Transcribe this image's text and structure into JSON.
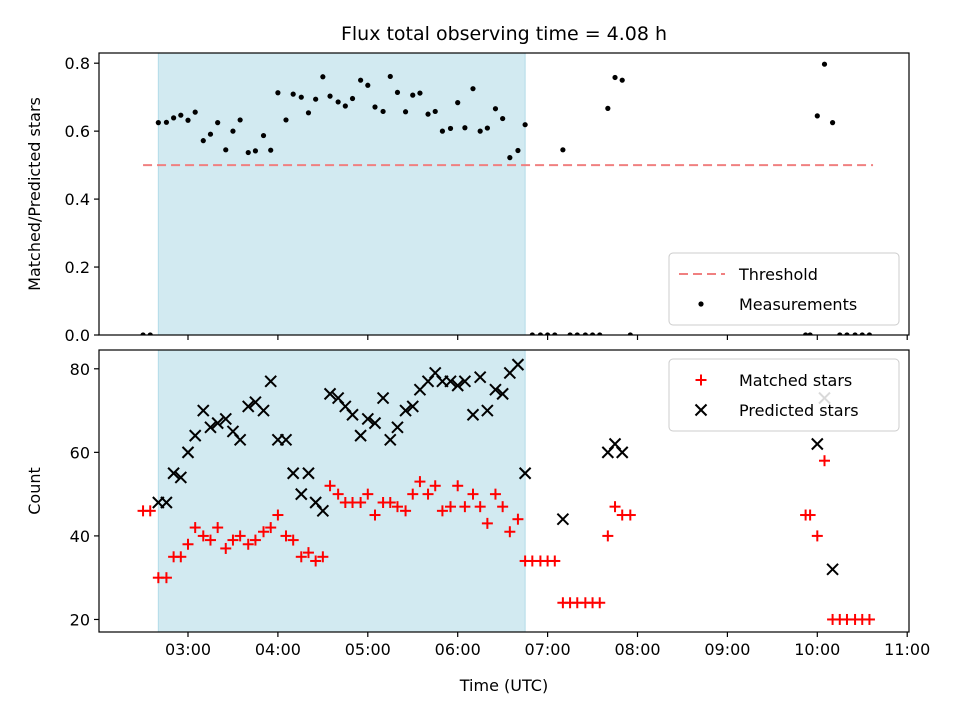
{
  "chart_data": {
    "title": "Flux total observing time = 4.08 h",
    "xlabel": "Time (UTC)",
    "x_unit": "hours UTC",
    "xlim": [
      2.01,
      11.02
    ],
    "xticks": [
      {
        "value": 3,
        "label": "03:00"
      },
      {
        "value": 4,
        "label": "04:00"
      },
      {
        "value": 5,
        "label": "05:00"
      },
      {
        "value": 6,
        "label": "06:00"
      },
      {
        "value": 7,
        "label": "07:00"
      },
      {
        "value": 8,
        "label": "08:00"
      },
      {
        "value": 9,
        "label": "09:00"
      },
      {
        "value": 10,
        "label": "10:00"
      },
      {
        "value": 11,
        "label": "11:00"
      }
    ],
    "shaded_span": {
      "x_start": 2.67,
      "x_end": 6.75,
      "color": "#add8e6"
    },
    "panels": [
      {
        "type": "scatter",
        "ylabel": "Matched/Predicted stars",
        "ylim": [
          0,
          0.83
        ],
        "yticks": [
          {
            "value": 0.0,
            "label": "0.0"
          },
          {
            "value": 0.2,
            "label": "0.2"
          },
          {
            "value": 0.4,
            "label": "0.4"
          },
          {
            "value": 0.6,
            "label": "0.6"
          },
          {
            "value": 0.8,
            "label": "0.8"
          }
        ],
        "threshold": {
          "name": "Threshold",
          "value": 0.5,
          "x_start": 2.5,
          "x_end": 10.62,
          "color": "#f08080"
        },
        "legend_position": "lower-right",
        "series": [
          {
            "name": "Measurements",
            "marker": "dot",
            "color": "#000000",
            "points": [
              [
                2.5,
                0
              ],
              [
                2.58,
                0
              ],
              [
                2.67,
                0.625
              ],
              [
                2.76,
                0.626
              ],
              [
                2.84,
                0.639
              ],
              [
                2.92,
                0.647
              ],
              [
                3.0,
                0.632
              ],
              [
                3.08,
                0.656
              ],
              [
                3.17,
                0.572
              ],
              [
                3.25,
                0.591
              ],
              [
                3.33,
                0.625
              ],
              [
                3.42,
                0.545
              ],
              [
                3.5,
                0.6
              ],
              [
                3.58,
                0.633
              ],
              [
                3.67,
                0.537
              ],
              [
                3.75,
                0.542
              ],
              [
                3.84,
                0.587
              ],
              [
                3.92,
                0.544
              ],
              [
                4.0,
                0.713
              ],
              [
                4.09,
                0.633
              ],
              [
                4.17,
                0.709
              ],
              [
                4.26,
                0.7
              ],
              [
                4.34,
                0.654
              ],
              [
                4.42,
                0.694
              ],
              [
                4.5,
                0.76
              ],
              [
                4.58,
                0.703
              ],
              [
                4.67,
                0.686
              ],
              [
                4.75,
                0.674
              ],
              [
                4.83,
                0.696
              ],
              [
                4.92,
                0.75
              ],
              [
                5.0,
                0.735
              ],
              [
                5.08,
                0.671
              ],
              [
                5.17,
                0.658
              ],
              [
                5.25,
                0.761
              ],
              [
                5.33,
                0.714
              ],
              [
                5.42,
                0.657
              ],
              [
                5.5,
                0.706
              ],
              [
                5.58,
                0.712
              ],
              [
                5.67,
                0.65
              ],
              [
                5.75,
                0.658
              ],
              [
                5.83,
                0.6
              ],
              [
                5.92,
                0.608
              ],
              [
                6.0,
                0.684
              ],
              [
                6.08,
                0.61
              ],
              [
                6.17,
                0.725
              ],
              [
                6.25,
                0.6
              ],
              [
                6.33,
                0.609
              ],
              [
                6.42,
                0.666
              ],
              [
                6.5,
                0.637
              ],
              [
                6.58,
                0.522
              ],
              [
                6.67,
                0.543
              ],
              [
                6.75,
                0.619
              ],
              [
                6.83,
                0
              ],
              [
                6.92,
                0
              ],
              [
                7.0,
                0
              ],
              [
                7.08,
                0
              ],
              [
                7.17,
                0.545
              ],
              [
                7.25,
                0
              ],
              [
                7.33,
                0
              ],
              [
                7.42,
                0
              ],
              [
                7.5,
                0
              ],
              [
                7.58,
                0
              ],
              [
                7.67,
                0.667
              ],
              [
                7.75,
                0.758
              ],
              [
                7.83,
                0.75
              ],
              [
                7.92,
                0
              ],
              [
                9.87,
                0
              ],
              [
                9.92,
                0
              ],
              [
                10.0,
                0.645
              ],
              [
                10.08,
                0.797
              ],
              [
                10.17,
                0.625
              ],
              [
                10.25,
                0
              ],
              [
                10.33,
                0
              ],
              [
                10.42,
                0
              ],
              [
                10.5,
                0
              ],
              [
                10.58,
                0
              ]
            ]
          }
        ]
      },
      {
        "type": "scatter",
        "ylabel": "Count",
        "ylim": [
          17,
          84.5
        ],
        "yticks": [
          {
            "value": 20,
            "label": "20"
          },
          {
            "value": 40,
            "label": "40"
          },
          {
            "value": 60,
            "label": "60"
          },
          {
            "value": 80,
            "label": "80"
          }
        ],
        "legend_position": "upper-right",
        "series": [
          {
            "name": "Matched stars",
            "marker": "plus",
            "color": "#ff0000",
            "points": [
              [
                2.5,
                46
              ],
              [
                2.58,
                46
              ],
              [
                2.67,
                30
              ],
              [
                2.76,
                30
              ],
              [
                2.84,
                35
              ],
              [
                2.92,
                35
              ],
              [
                3.0,
                38
              ],
              [
                3.08,
                42
              ],
              [
                3.17,
                40
              ],
              [
                3.25,
                39
              ],
              [
                3.33,
                42
              ],
              [
                3.42,
                37
              ],
              [
                3.5,
                39
              ],
              [
                3.58,
                40
              ],
              [
                3.67,
                38
              ],
              [
                3.75,
                39
              ],
              [
                3.84,
                41
              ],
              [
                3.92,
                42
              ],
              [
                4.0,
                45
              ],
              [
                4.09,
                40
              ],
              [
                4.17,
                39
              ],
              [
                4.26,
                35
              ],
              [
                4.34,
                36
              ],
              [
                4.42,
                34
              ],
              [
                4.5,
                35
              ],
              [
                4.58,
                52
              ],
              [
                4.67,
                50
              ],
              [
                4.75,
                48
              ],
              [
                4.83,
                48
              ],
              [
                4.92,
                48
              ],
              [
                5.0,
                50
              ],
              [
                5.08,
                45
              ],
              [
                5.17,
                48
              ],
              [
                5.25,
                48
              ],
              [
                5.33,
                47
              ],
              [
                5.42,
                46
              ],
              [
                5.5,
                50
              ],
              [
                5.58,
                53
              ],
              [
                5.67,
                50
              ],
              [
                5.75,
                52
              ],
              [
                5.83,
                46
              ],
              [
                5.92,
                47
              ],
              [
                6.0,
                52
              ],
              [
                6.08,
                47
              ],
              [
                6.17,
                50
              ],
              [
                6.25,
                47
              ],
              [
                6.33,
                43
              ],
              [
                6.42,
                50
              ],
              [
                6.5,
                47
              ],
              [
                6.58,
                41
              ],
              [
                6.67,
                44
              ],
              [
                6.75,
                34
              ],
              [
                6.83,
                34
              ],
              [
                6.92,
                34
              ],
              [
                7.0,
                34
              ],
              [
                7.08,
                34
              ],
              [
                7.17,
                24
              ],
              [
                7.25,
                24
              ],
              [
                7.33,
                24
              ],
              [
                7.42,
                24
              ],
              [
                7.5,
                24
              ],
              [
                7.58,
                24
              ],
              [
                7.67,
                40
              ],
              [
                7.75,
                47
              ],
              [
                7.83,
                45
              ],
              [
                7.92,
                45
              ],
              [
                9.87,
                45
              ],
              [
                9.92,
                45
              ],
              [
                10.0,
                40
              ],
              [
                10.08,
                58
              ],
              [
                10.17,
                20
              ],
              [
                10.25,
                20
              ],
              [
                10.33,
                20
              ],
              [
                10.42,
                20
              ],
              [
                10.5,
                20
              ],
              [
                10.58,
                20
              ]
            ]
          },
          {
            "name": "Predicted stars",
            "marker": "x",
            "color": "#000000",
            "points": [
              [
                2.67,
                48
              ],
              [
                2.76,
                48
              ],
              [
                2.84,
                55
              ],
              [
                2.92,
                54
              ],
              [
                3.0,
                60
              ],
              [
                3.08,
                64
              ],
              [
                3.17,
                70
              ],
              [
                3.25,
                66
              ],
              [
                3.33,
                67
              ],
              [
                3.42,
                68
              ],
              [
                3.5,
                65
              ],
              [
                3.58,
                63
              ],
              [
                3.67,
                71
              ],
              [
                3.75,
                72
              ],
              [
                3.84,
                70
              ],
              [
                3.92,
                77
              ],
              [
                4.0,
                63
              ],
              [
                4.09,
                63
              ],
              [
                4.17,
                55
              ],
              [
                4.26,
                50
              ],
              [
                4.34,
                55
              ],
              [
                4.42,
                48
              ],
              [
                4.5,
                46
              ],
              [
                4.58,
                74
              ],
              [
                4.67,
                73
              ],
              [
                4.75,
                71
              ],
              [
                4.83,
                69
              ],
              [
                4.92,
                64
              ],
              [
                5.0,
                68
              ],
              [
                5.08,
                67
              ],
              [
                5.17,
                73
              ],
              [
                5.25,
                63
              ],
              [
                5.33,
                66
              ],
              [
                5.42,
                70
              ],
              [
                5.5,
                71
              ],
              [
                5.58,
                75
              ],
              [
                5.67,
                77
              ],
              [
                5.75,
                79
              ],
              [
                5.83,
                77
              ],
              [
                5.92,
                77
              ],
              [
                6.0,
                76
              ],
              [
                6.08,
                77
              ],
              [
                6.17,
                69
              ],
              [
                6.25,
                78
              ],
              [
                6.33,
                70
              ],
              [
                6.42,
                75
              ],
              [
                6.5,
                74
              ],
              [
                6.58,
                79
              ],
              [
                6.67,
                81
              ],
              [
                6.75,
                55
              ],
              [
                7.17,
                44
              ],
              [
                7.67,
                60
              ],
              [
                7.75,
                62
              ],
              [
                7.83,
                60
              ],
              [
                10.0,
                62
              ],
              [
                10.08,
                73
              ],
              [
                10.17,
                32
              ]
            ]
          }
        ]
      }
    ]
  }
}
